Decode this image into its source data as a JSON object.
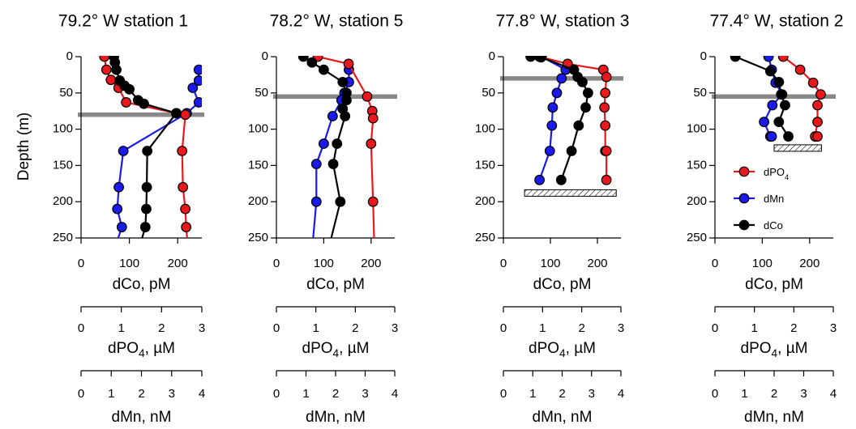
{
  "chart_data": {
    "type": "line",
    "y_axis": {
      "label": "Depth (m)",
      "ylim": [
        250,
        0
      ],
      "inverted": true,
      "ticks": [
        0,
        50,
        100,
        150,
        200,
        250
      ],
      "tick_labels": [
        "0",
        "50",
        "100",
        "150",
        "200",
        "250"
      ]
    },
    "x_axes": [
      {
        "key": "dCo",
        "label": "dCo, pM",
        "range": [
          0,
          250
        ],
        "ticks": [
          0,
          100,
          200
        ],
        "tick_labels": [
          "0",
          "100",
          "200"
        ]
      },
      {
        "key": "dPO4",
        "label_prefix": "dPO",
        "label_sub": "4",
        "label_suffix": ", µM",
        "range": [
          0,
          3
        ],
        "ticks": [
          0,
          1,
          2,
          3
        ],
        "tick_labels": [
          "0",
          "1",
          "2",
          "3"
        ]
      },
      {
        "key": "dMn",
        "label": "dMn, nM",
        "range": [
          0,
          4
        ],
        "ticks": [
          0,
          1,
          2,
          3,
          4
        ],
        "tick_labels": [
          "0",
          "1",
          "2",
          "3",
          "4"
        ]
      }
    ],
    "series_style": {
      "dPO4": {
        "color": "#e8191c"
      },
      "dMn": {
        "color": "#1a1aeb"
      },
      "dCo": {
        "color": "#000000"
      }
    },
    "legend": {
      "placement": "inside panel 4, lower right",
      "entries": [
        {
          "key": "dPO4",
          "prefix": "dPO",
          "sub": "4"
        },
        {
          "key": "dMn",
          "prefix": "dMn",
          "sub": ""
        },
        {
          "key": "dCo",
          "prefix": "dCo",
          "sub": ""
        }
      ]
    },
    "panels": [
      {
        "title": "79.2° W station 1",
        "mixed_layer_depth": 80,
        "bottom_depth": null,
        "series": [
          {
            "key": "dCo",
            "x": [
              68,
              70,
              73,
              80,
              90,
              100,
              118,
              130,
              197,
              137,
              136,
              135,
              133,
              122
            ],
            "y": [
              0,
              8,
              18,
              33,
              40,
              45,
              60,
              65,
              78,
              130,
              180,
              210,
              235,
              260
            ]
          },
          {
            "key": "dPO4",
            "x": [
              0.58,
              0.63,
              0.74,
              0.93,
              1.12,
              2.37,
              2.59,
              2.51,
              2.53,
              2.59,
              2.61,
              2.65
            ],
            "y": [
              0,
              18,
              32,
              43,
              63,
              78,
              80,
              130,
              180,
              210,
              235,
              260
            ]
          },
          {
            "key": "dMn",
            "x": [
              3.9,
              3.9,
              3.7,
              3.9,
              3.5,
              1.4,
              1.25,
              1.2,
              1.35,
              1.15
            ],
            "y": [
              18,
              33,
              43,
              63,
              78,
              130,
              180,
              210,
              235,
              260
            ]
          }
        ]
      },
      {
        "title": "78.2° W, station 5",
        "mixed_layer_depth": 55,
        "bottom_depth": null,
        "series": [
          {
            "key": "dCo",
            "x": [
              57,
              75,
              100,
              140,
              148,
              148,
              140,
              145,
              128,
              120,
              135,
              112
            ],
            "y": [
              0,
              8,
              18,
              35,
              50,
              60,
              72,
              82,
              120,
              148,
              200,
              260
            ]
          },
          {
            "key": "dPO4",
            "x": [
              1.05,
              1.83,
              2.3,
              2.43,
              2.45,
              2.4,
              2.45,
              2.48
            ],
            "y": [
              0,
              10,
              55,
              75,
              85,
              120,
              200,
              260
            ]
          },
          {
            "key": "dMn",
            "x": [
              2.45,
              2.45,
              2.3,
              2.2,
              1.9,
              1.6,
              1.35,
              1.35,
              1.22
            ],
            "y": [
              18,
              35,
              50,
              60,
              82,
              120,
              148,
              200,
              260
            ]
          }
        ]
      },
      {
        "title": "77.8° W, station 3",
        "mixed_layer_depth": 30,
        "bottom_depth": 188,
        "series": [
          {
            "key": "dCo",
            "x": [
              58,
              80,
              150,
              158,
              168,
              180,
              175,
              160,
              145,
              123
            ],
            "y": [
              0,
              1,
              18,
              28,
              35,
              50,
              70,
              95,
              130,
              170
            ]
          },
          {
            "key": "dPO4",
            "x": [
              0.92,
              1.64,
              2.55,
              2.63,
              2.6,
              2.58,
              2.6,
              2.6,
              2.63,
              2.63
            ],
            "y": [
              0,
              10,
              18,
              28,
              50,
              70,
              95,
              130,
              130,
              170
            ]
          },
          {
            "key": "dMn",
            "x": [
              1.3,
              2.12,
              1.98,
              1.82,
              1.68,
              1.65,
              1.58,
              1.23
            ],
            "y": [
              0,
              18,
              30,
              50,
              70,
              95,
              130,
              170
            ]
          }
        ]
      },
      {
        "title": "77.4° W, station 2",
        "mixed_layer_depth": 55,
        "bottom_depth": 126,
        "series": [
          {
            "key": "dCo",
            "x": [
              43,
              117,
              135,
              140,
              140,
              148,
              135,
              155
            ],
            "y": [
              0,
              20,
              35,
              52,
              52,
              67,
              90,
              110
            ]
          },
          {
            "key": "dPO4",
            "x": [
              1.73,
              2.16,
              2.49,
              2.68,
              2.6,
              2.6,
              2.54,
              2.6
            ],
            "y": [
              0,
              18,
              36,
              52,
              67,
              90,
              110,
              110
            ]
          },
          {
            "key": "dMn",
            "x": [
              1.81,
              1.92,
              2.05,
              2.27,
              1.94,
              1.66,
              1.87,
              1.92
            ],
            "y": [
              0,
              18,
              36,
              52,
              67,
              90,
              110,
              110
            ]
          }
        ]
      }
    ]
  }
}
